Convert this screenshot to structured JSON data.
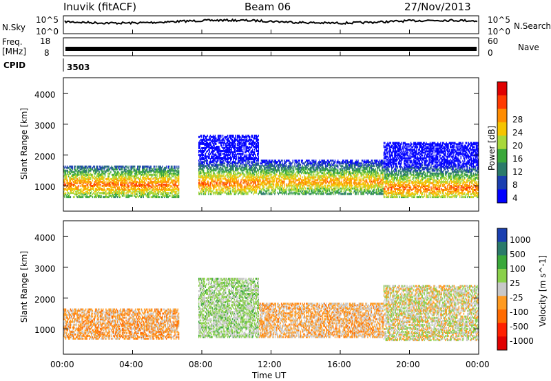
{
  "header": {
    "station": "Inuvik (fitACF)",
    "beam": "Beam 06",
    "date": "27/Nov/2013"
  },
  "panels": {
    "nsky_label": "N.Sky",
    "nsky_top": "10^5",
    "nsky_bottom": "10^0",
    "nsearch_label": "N.Search",
    "nsearch_top": "10^5",
    "nsearch_bottom": "10^0",
    "freq_label": "Freq.",
    "freq_unit": "[MHz]",
    "freq_top": "18",
    "freq_bottom": "8",
    "nave_label": "Nave",
    "nave_top": "60",
    "nave_bottom": "0",
    "cpid_label": "CPID",
    "cpid_value": "3503"
  },
  "axes": {
    "y_label": "Slant Range [km]",
    "x_label": "Time UT",
    "y_ticks": [
      "1000",
      "2000",
      "3000",
      "4000"
    ],
    "x_ticks": [
      "00:00",
      "04:00",
      "08:00",
      "12:00",
      "16:00",
      "20:00",
      "00:00"
    ]
  },
  "colorbars": {
    "power": {
      "label": "Power [dB]",
      "ticks": [
        "28",
        "24",
        "20",
        "16",
        "12",
        "8",
        "4"
      ],
      "colors": [
        "#e00000",
        "#ff3a00",
        "#ff8c00",
        "#f5c400",
        "#a8d83a",
        "#3aa83a",
        "#2a7a6a",
        "#1a3fb0",
        "#0000ff"
      ]
    },
    "velocity": {
      "label": "Velocity [m s^-1]",
      "ticks": [
        "1000",
        "500",
        "100",
        "25",
        "-25",
        "-100",
        "-500",
        "-1000"
      ],
      "colors": [
        "#1a3fb0",
        "#2a7a6a",
        "#3aa83a",
        "#8ad04a",
        "#c8c8c8",
        "#ff9a20",
        "#ff6a00",
        "#ff2000",
        "#e00000"
      ]
    }
  },
  "chart_data": [
    {
      "type": "heatmap",
      "title": "Power",
      "xlabel": "Time UT",
      "ylabel": "Slant Range [km]",
      "xlim": [
        0,
        24
      ],
      "ylim": [
        180,
        4500
      ],
      "colorbar_label": "Power [dB]",
      "clim": [
        0,
        32
      ],
      "bands": [
        {
          "x_start": 0.0,
          "x_end": 6.7,
          "range_low": 600,
          "range_high": 1600,
          "core_km": 1000,
          "peak_db": 28
        },
        {
          "x_start": 7.8,
          "x_end": 11.3,
          "range_low": 700,
          "range_high": 2600,
          "core_km": 1050,
          "peak_db": 28
        },
        {
          "x_start": 11.3,
          "x_end": 18.5,
          "range_low": 700,
          "range_high": 1800,
          "core_km": 1100,
          "peak_db": 26
        },
        {
          "x_start": 18.5,
          "x_end": 24.0,
          "range_low": 600,
          "range_high": 2400,
          "core_km": 900,
          "peak_db": 28
        }
      ]
    },
    {
      "type": "heatmap",
      "title": "Velocity",
      "xlabel": "Time UT",
      "ylabel": "Slant Range [km]",
      "xlim": [
        0,
        24
      ],
      "ylim": [
        180,
        4500
      ],
      "colorbar_label": "Velocity [m s^-1]",
      "clim": [
        -1000,
        1000
      ],
      "bands": [
        {
          "x_start": 0.0,
          "x_end": 6.7,
          "range_low": 650,
          "range_high": 1600,
          "dominant_velocity": -200
        },
        {
          "x_start": 7.8,
          "x_end": 11.3,
          "range_low": 700,
          "range_high": 2600,
          "dominant_velocity": 150
        },
        {
          "x_start": 11.3,
          "x_end": 18.5,
          "range_low": 700,
          "range_high": 1800,
          "dominant_velocity": -150
        },
        {
          "x_start": 18.5,
          "x_end": 24.0,
          "range_low": 600,
          "range_high": 2400,
          "dominant_velocity": 0
        }
      ]
    }
  ]
}
